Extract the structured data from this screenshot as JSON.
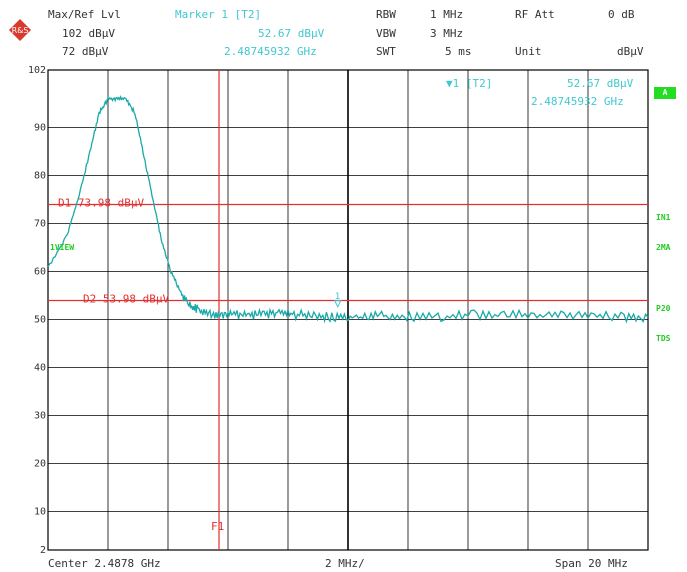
{
  "header": {
    "ref_label": "Max/Ref Lvl",
    "ref_value": "102 dBµV",
    "ref_value2": "72 dBµV",
    "marker_label": "Marker 1 [T2]",
    "marker_level": "52.67 dBµV",
    "marker_freq": "2.48745932 GHz",
    "rbw_label": "RBW",
    "rbw_value": "1 MHz",
    "vbw_label": "VBW",
    "vbw_value": "3 MHz",
    "swt_label": "SWT",
    "swt_value": "5 ms",
    "rfatt_label": "RF Att",
    "rfatt_value": "0 dB",
    "unit_label": "Unit",
    "unit_value": "dBµV"
  },
  "overlay": {
    "marker_box_label": "▼1 [T2]",
    "marker_box_level": "52.67 dBµV",
    "marker_box_freq": "2.48745932 GHz"
  },
  "side_labels": {
    "a_box": "A",
    "in1": "IN1",
    "ma2": "2MA",
    "p20": "P20",
    "tds": "TDS",
    "view": "1VIEW"
  },
  "footer": {
    "center": "Center 2.4878 GHz",
    "div": "2 MHz/",
    "span": "Span 20 MHz"
  },
  "colors": {
    "trace": "#1aa9a9",
    "limit": "#e23030",
    "grid": "#000000",
    "annotation": "#40c8d0",
    "side": "#22cc22"
  },
  "chart_data": {
    "type": "line",
    "xlim": [
      2.4778,
      2.4978
    ],
    "ylim": [
      2,
      102
    ],
    "y_ticks": [
      102,
      90,
      80,
      70,
      60,
      50,
      40,
      30,
      20,
      10,
      2
    ],
    "grid": true,
    "series": [
      {
        "x": [
          2.4778,
          2.4784,
          2.4788,
          2.4792,
          2.4795,
          2.4798,
          2.4801,
          2.4804,
          2.4807,
          2.481,
          2.4813,
          2.4816,
          2.4819,
          2.4822,
          2.4825,
          2.4828,
          2.4832,
          2.4836,
          2.484,
          2.4845,
          2.485,
          2.4855,
          2.486,
          2.4866,
          2.4872,
          2.4878,
          2.4885,
          2.4892,
          2.49,
          2.491,
          2.492,
          2.493,
          2.494,
          2.495,
          2.496,
          2.497,
          2.4978
        ],
        "y": [
          61,
          67,
          75,
          85,
          93,
          96,
          96,
          96,
          93,
          84,
          75,
          66,
          60,
          56,
          53,
          52,
          51,
          51,
          51,
          51,
          51,
          51.5,
          51,
          51,
          50.5,
          50.5,
          50.5,
          51,
          50.5,
          50.5,
          51,
          51,
          51,
          51,
          51,
          50.5,
          50.5
        ]
      }
    ],
    "limit_lines": [
      {
        "label": "D1 73.98 dBµV",
        "value": 73.98
      },
      {
        "label": "D2 53.98 dBµV",
        "value": 53.98
      }
    ],
    "vertical_line": {
      "label": "F1",
      "x": 2.4835
    },
    "marker": {
      "label": "1",
      "x": 2.48745932,
      "y": 52.67
    }
  }
}
